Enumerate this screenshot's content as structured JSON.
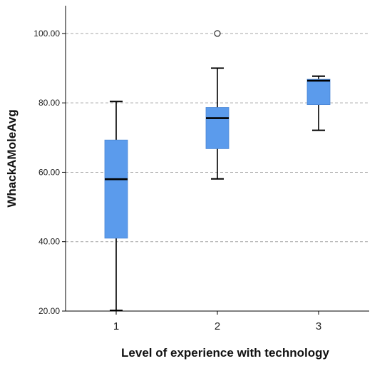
{
  "chart_data": {
    "type": "boxplot",
    "xlabel": "Level of experience with technology",
    "ylabel": "WhackAMoleAvg",
    "categories": [
      "1",
      "2",
      "3"
    ],
    "ylim": [
      20,
      108
    ],
    "yticks": [
      20,
      40,
      60,
      80,
      100
    ],
    "ytick_labels": [
      "20.00",
      "40.00",
      "60.00",
      "80.00",
      "100.00"
    ],
    "grid": "horizontal dashed",
    "box_color": "#5b9bec",
    "line_color": "#000000",
    "boxes": [
      {
        "category": "1",
        "min": 20.2,
        "q1": 41.0,
        "median": 58.0,
        "q3": 69.3,
        "max": 80.4,
        "outliers": []
      },
      {
        "category": "2",
        "min": 58.1,
        "q1": 66.8,
        "median": 75.6,
        "q3": 78.7,
        "max": 90.0,
        "outliers": [
          100.0
        ]
      },
      {
        "category": "3",
        "min": 72.1,
        "q1": 79.5,
        "median": 86.4,
        "q3": 86.8,
        "max": 87.7,
        "outliers": []
      }
    ]
  }
}
